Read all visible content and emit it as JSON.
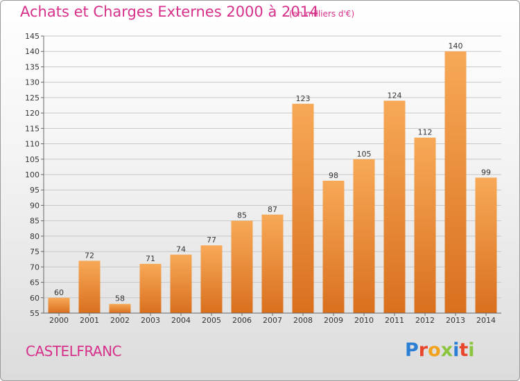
{
  "title": "Achats et Charges Externes 2000 à 2014",
  "subtitle": "(en milliers d'€)",
  "location": "CASTELFRANC",
  "logo": {
    "letters": [
      "P",
      "r",
      "o",
      "x",
      "i",
      "t",
      "i"
    ],
    "colors": [
      "#2a7fd4",
      "#e8462c",
      "#f2a21c",
      "#8bc53f",
      "#2a7fd4",
      "#e8462c",
      "#8bc53f"
    ]
  },
  "colors": {
    "title": "#d6308a",
    "bar_top": "#f7a957",
    "bar_bottom": "#d9701e",
    "grid": "#c8c8c8"
  },
  "chart_data": {
    "type": "bar",
    "title": "Achats et Charges Externes 2000 à 2014",
    "subtitle": "(en milliers d'€)",
    "categories": [
      "2000",
      "2001",
      "2002",
      "2003",
      "2004",
      "2005",
      "2006",
      "2007",
      "2008",
      "2009",
      "2010",
      "2011",
      "2012",
      "2013",
      "2014"
    ],
    "values": [
      60,
      72,
      58,
      71,
      74,
      77,
      85,
      87,
      123,
      98,
      105,
      124,
      112,
      140,
      99
    ],
    "ylim": [
      55,
      145
    ],
    "yticks": [
      55,
      60,
      65,
      70,
      75,
      80,
      85,
      90,
      95,
      100,
      105,
      110,
      115,
      120,
      125,
      130,
      135,
      140,
      145
    ],
    "grid": true,
    "data_labels": true,
    "xlabel": "",
    "ylabel": ""
  }
}
